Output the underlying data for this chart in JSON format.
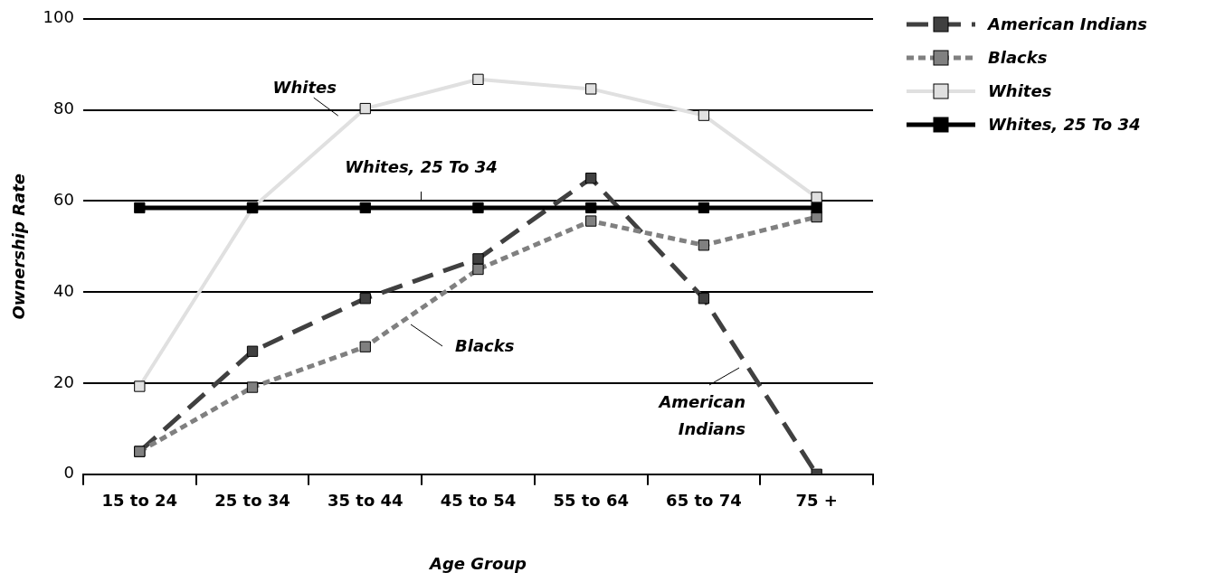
{
  "chart_data": {
    "type": "line",
    "xlabel": "Age Group",
    "ylabel": "Ownership Rate",
    "categories": [
      "15 to 24",
      "25 to 34",
      "35 to 44",
      "45 to 54",
      "55 to 64",
      "65 to 74",
      "75 +"
    ],
    "series": [
      {
        "name": "American Indians",
        "color": "#404040",
        "line_style": "dashed",
        "values": [
          5,
          27,
          38.6,
          47.3,
          65,
          38.6,
          0
        ]
      },
      {
        "name": "Blacks",
        "color": "#808080",
        "line_style": "dotted",
        "values": [
          5,
          19.1,
          28,
          45,
          55.6,
          50.3,
          56.5
        ]
      },
      {
        "name": "Whites",
        "color": "#e0e0e0",
        "line_style": "solid",
        "values": [
          19.3,
          58.5,
          80.3,
          86.7,
          84.6,
          78.8,
          60.8
        ]
      },
      {
        "name": "Whites, 25 To 34",
        "color": "#000000",
        "line_style": "solid",
        "values": [
          58.5,
          58.5,
          58.5,
          58.5,
          58.5,
          58.5,
          58.5
        ]
      }
    ],
    "ylim": [
      0,
      100
    ],
    "yticks": [
      0,
      20,
      40,
      60,
      80,
      100
    ],
    "grid": "y",
    "legend": "top right",
    "marker": "square",
    "annotations": [
      {
        "text": "Whites",
        "x": "35 to 44",
        "y": 80.3
      },
      {
        "text": "Whites, 25 To 34",
        "x": "45 to 54",
        "y": 58.5
      },
      "Blacks",
      "American Indians"
    ]
  }
}
